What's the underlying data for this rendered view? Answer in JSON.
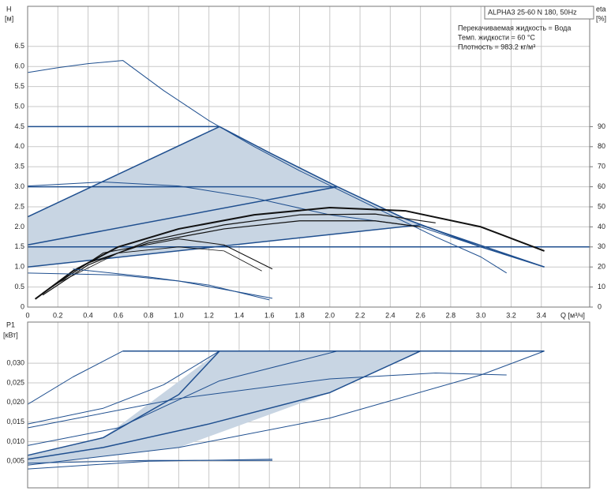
{
  "chart_data": [
    {
      "type": "line",
      "legend_box": "ALPHA3 25-60 N 180, 50Hz",
      "annotations": [
        "Перекачиваемая жидкость = Вода",
        "Темп. жидкости = 60 °C",
        "Плотность = 983.2 кг/м³"
      ],
      "y_label": "H",
      "y_unit": "[м]",
      "y2_label": "eta",
      "y2_unit": "[%]",
      "x_label": "Q [м³/ч]",
      "xlim": [
        0,
        3.72
      ],
      "ylim": [
        0,
        7.5
      ],
      "y2lim": [
        0,
        150
      ],
      "xticks": [
        0,
        0.2,
        0.4,
        0.6,
        0.8,
        {
          "value": 1,
          "label": "1.0"
        },
        1.2,
        1.4,
        1.6,
        1.8,
        {
          "value": 2,
          "label": "2.0"
        },
        2.2,
        2.4,
        2.6,
        2.8,
        {
          "value": 3,
          "label": "3.0"
        },
        3.2,
        3.4
      ],
      "yticks": [
        0,
        0.5,
        {
          "value": 1,
          "label": "1.0"
        },
        1.5,
        {
          "value": 2,
          "label": "2.0"
        },
        2.5,
        {
          "value": 3,
          "label": "3.0"
        },
        3.5,
        {
          "value": 4,
          "label": "4.0"
        },
        4.5,
        {
          "value": 5,
          "label": "5.0"
        },
        5.5,
        {
          "value": 6,
          "label": "6.0"
        },
        6.5
      ],
      "y2ticks": [
        0,
        10,
        20,
        30,
        40,
        50,
        60,
        70,
        80,
        90
      ],
      "grid": true,
      "series": [
        {
          "kind": "area",
          "color": "#c8d5e3",
          "x": [
            0,
            1.27,
            1.6,
            2.05,
            2.6,
            0
          ],
          "values": [
            2.25,
            4.5,
            3.85,
            3.0,
            2.05,
            1.0
          ]
        },
        {
          "kind": "line",
          "color": "#1f4f8f",
          "width": 1,
          "x": [
            0,
            0.2,
            0.4,
            0.63,
            0.9,
            1.2,
            1.5,
            1.8,
            2.1,
            2.4,
            2.7,
            3.0,
            3.17
          ],
          "values": [
            5.85,
            5.97,
            6.07,
            6.15,
            5.4,
            4.65,
            4.0,
            3.4,
            2.85,
            2.3,
            1.75,
            1.25,
            0.85
          ]
        },
        {
          "kind": "line",
          "color": "#1f4f8f",
          "width": 1.5,
          "x": [
            0,
            1.27,
            1.6,
            2.05,
            2.5,
            3.0,
            3.42
          ],
          "values": [
            4.5,
            4.5,
            3.85,
            3.0,
            2.2,
            1.5,
            1.0
          ]
        },
        {
          "kind": "line",
          "color": "#1f4f8f",
          "width": 1.5,
          "x": [
            0,
            2.05
          ],
          "values": [
            3.0,
            3.0
          ]
        },
        {
          "kind": "line",
          "color": "#1f4f8f",
          "width": 1.5,
          "x": [
            0,
            3.72
          ],
          "values": [
            1.5,
            1.5
          ]
        },
        {
          "kind": "line",
          "color": "#1f4f8f",
          "width": 1.5,
          "x": [
            0,
            1.27
          ],
          "values": [
            2.25,
            4.5
          ]
        },
        {
          "kind": "line",
          "color": "#1f4f8f",
          "width": 1.5,
          "x": [
            0,
            2.05
          ],
          "values": [
            1.55,
            3.0
          ]
        },
        {
          "kind": "line",
          "color": "#1f4f8f",
          "width": 1.5,
          "x": [
            0,
            2.6,
            3.42
          ],
          "values": [
            1.0,
            2.05,
            1.0
          ]
        },
        {
          "kind": "line",
          "color": "#1f4f8f",
          "width": 1,
          "x": [
            0,
            0.5,
            1.0,
            1.5,
            2.0,
            2.6,
            3.0,
            3.42
          ],
          "values": [
            3.02,
            3.12,
            3.02,
            2.72,
            2.3,
            2.0,
            1.5,
            1.0
          ]
        },
        {
          "kind": "line",
          "color": "#111111",
          "width": 2,
          "x": [
            0.05,
            0.3,
            0.6,
            1.0,
            1.5,
            2.0,
            2.5,
            3.0,
            3.42
          ],
          "values": [
            0.2,
            0.9,
            1.5,
            1.95,
            2.3,
            2.48,
            2.4,
            2.0,
            1.4
          ]
        },
        {
          "kind": "line",
          "color": "#111111",
          "width": 1.2,
          "x": [
            0.1,
            0.4,
            0.8,
            1.3,
            1.8,
            2.3,
            2.7
          ],
          "values": [
            0.3,
            1.05,
            1.65,
            2.05,
            2.3,
            2.32,
            2.1
          ]
        },
        {
          "kind": "line",
          "color": "#111111",
          "width": 1.2,
          "x": [
            0.1,
            0.4,
            0.8,
            1.3,
            1.8,
            2.3,
            2.6
          ],
          "values": [
            0.35,
            1.1,
            1.6,
            1.95,
            2.15,
            2.15,
            2.0
          ]
        },
        {
          "kind": "line",
          "color": "#111111",
          "width": 1,
          "x": [
            0.1,
            0.5,
            1.0,
            1.3,
            1.62
          ],
          "values": [
            0.35,
            1.35,
            1.7,
            1.55,
            0.95
          ]
        },
        {
          "kind": "line",
          "color": "#111111",
          "width": 0.8,
          "x": [
            0.2,
            0.6,
            1.0,
            1.3,
            1.55
          ],
          "values": [
            0.6,
            1.35,
            1.5,
            1.4,
            0.9
          ]
        },
        {
          "kind": "line",
          "color": "#1f4f8f",
          "width": 1,
          "x": [
            0,
            0.6,
            1.0,
            1.62
          ],
          "values": [
            0.85,
            0.8,
            0.65,
            0.22
          ]
        },
        {
          "kind": "line",
          "color": "#1f4f8f",
          "width": 1,
          "x": [
            0.3,
            0.8,
            1.2,
            1.6
          ],
          "values": [
            0.95,
            0.75,
            0.55,
            0.18
          ]
        }
      ]
    },
    {
      "type": "line",
      "y_label": "P1",
      "y_unit": "[кВт]",
      "xlim": [
        0,
        3.72
      ],
      "ylim": [
        -0.0018,
        0.0405
      ],
      "xticks": [
        0,
        0.2,
        0.4,
        0.6,
        0.8,
        1,
        1.2,
        1.4,
        1.6,
        1.8,
        2,
        2.2,
        2.4,
        2.6,
        2.8,
        3,
        3.2,
        3.4
      ],
      "xtick_labels": false,
      "yticks": [
        {
          "value": 0.005,
          "label": "0,005"
        },
        {
          "value": 0.01,
          "label": "0,010"
        },
        {
          "value": 0.015,
          "label": "0,015"
        },
        {
          "value": 0.02,
          "label": "0,020"
        },
        {
          "value": 0.025,
          "label": "0,025"
        },
        {
          "value": 0.03,
          "label": "0,030"
        }
      ],
      "grid": true,
      "series": [
        {
          "kind": "area",
          "color": "#c8d5e3",
          "x": [
            0,
            0.5,
            1.27,
            2.6,
            2.0,
            1.0,
            0
          ],
          "values": [
            0.0065,
            0.011,
            0.0331,
            0.0331,
            0.0225,
            0.0085,
            0.004
          ]
        },
        {
          "kind": "line",
          "color": "#1f4f8f",
          "width": 1.5,
          "x": [
            0.63,
            3.42
          ],
          "values": [
            0.0331,
            0.0331
          ]
        },
        {
          "kind": "line",
          "color": "#1f4f8f",
          "width": 1,
          "x": [
            0,
            0.3,
            0.63
          ],
          "values": [
            0.0195,
            0.0265,
            0.0331
          ]
        },
        {
          "kind": "line",
          "color": "#1f4f8f",
          "width": 1,
          "x": [
            0,
            0.5,
            0.9,
            1.27
          ],
          "values": [
            0.0145,
            0.0185,
            0.0245,
            0.0331
          ]
        },
        {
          "kind": "line",
          "color": "#1f4f8f",
          "width": 1.5,
          "x": [
            0,
            0.5,
            1.0,
            1.27
          ],
          "values": [
            0.0065,
            0.011,
            0.022,
            0.0331
          ]
        },
        {
          "kind": "line",
          "color": "#1f4f8f",
          "width": 1,
          "x": [
            0,
            0.6,
            1.27,
            2.05
          ],
          "values": [
            0.009,
            0.0135,
            0.0255,
            0.0331
          ]
        },
        {
          "kind": "line",
          "color": "#1f4f8f",
          "width": 1.5,
          "x": [
            0,
            0.5,
            1.2,
            2.0,
            2.6
          ],
          "values": [
            0.0055,
            0.0085,
            0.0145,
            0.0225,
            0.0331
          ]
        },
        {
          "kind": "line",
          "color": "#1f4f8f",
          "width": 1,
          "x": [
            0,
            1.0,
            2.0,
            3.0,
            3.42
          ],
          "values": [
            0.004,
            0.0085,
            0.016,
            0.027,
            0.0331
          ]
        },
        {
          "kind": "line",
          "color": "#1f4f8f",
          "width": 1,
          "x": [
            0,
            1.0,
            2.0,
            2.7,
            3.17
          ],
          "values": [
            0.0135,
            0.021,
            0.026,
            0.0275,
            0.027
          ]
        },
        {
          "kind": "line",
          "color": "#1f4f8f",
          "width": 1,
          "x": [
            0,
            0.8,
            1.62
          ],
          "values": [
            0.003,
            0.005,
            0.0055
          ]
        },
        {
          "kind": "line",
          "color": "#1f4f8f",
          "width": 1,
          "x": [
            0,
            0.8,
            1.62
          ],
          "values": [
            0.0045,
            0.0052,
            0.0052
          ]
        }
      ]
    }
  ]
}
